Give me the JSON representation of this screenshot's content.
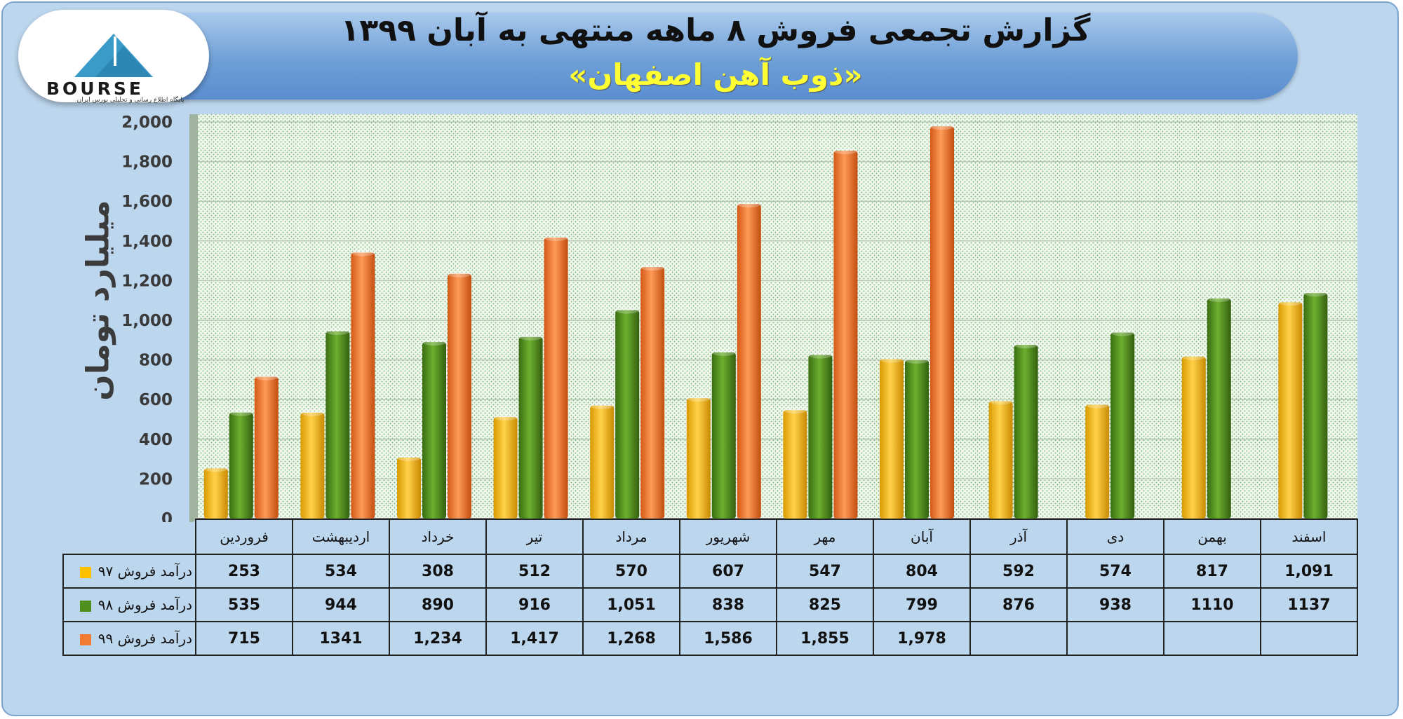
{
  "header": {
    "title": "گزارش تجمعی فروش ۸ ماهه منتهی به آبان ۱۳۹۹",
    "subtitle": "«ذوب آهن اصفهان»"
  },
  "logo": {
    "text": "BOURSE",
    "subtext": "پایگاه اطلاع رسانی و تحلیلی بورس ایران"
  },
  "colors": {
    "series_97": "#ffc000",
    "series_98": "#4e8f1d",
    "series_99": "#f07b32"
  },
  "chart_data": {
    "type": "bar",
    "ylabel": "میلیارد تومان",
    "ylim": [
      0,
      2000
    ],
    "yticks": [
      "0",
      "200",
      "400",
      "600",
      "800",
      "1,000",
      "1,200",
      "1,400",
      "1,600",
      "1,800",
      "2,000"
    ],
    "grid": true,
    "categories": [
      "فروردین",
      "اردیبهشت",
      "خرداد",
      "تیر",
      "مرداد",
      "شهریور",
      "مهر",
      "آبان",
      "آذر",
      "دی",
      "بهمن",
      "اسفند"
    ],
    "series": [
      {
        "name": "درآمد فروش ۹۷",
        "values": [
          253,
          534,
          308,
          512,
          570,
          607,
          547,
          804,
          592,
          574,
          817,
          1091
        ],
        "labels": [
          "253",
          "534",
          "308",
          "512",
          "570",
          "607",
          "547",
          "804",
          "592",
          "574",
          "817",
          "1,091"
        ]
      },
      {
        "name": "درآمد فروش ۹۸",
        "values": [
          535,
          944,
          890,
          916,
          1051,
          838,
          825,
          799,
          876,
          938,
          1110,
          1137
        ],
        "labels": [
          "535",
          "944",
          "890",
          "916",
          "1,051",
          "838",
          "825",
          "799",
          "876",
          "938",
          "1110",
          "1137"
        ]
      },
      {
        "name": "درآمد فروش ۹۹",
        "values": [
          715,
          1341,
          1234,
          1417,
          1268,
          1586,
          1855,
          1978,
          null,
          null,
          null,
          null
        ],
        "labels": [
          "715",
          "1341",
          "1,234",
          "1,417",
          "1,268",
          "1,586",
          "1,855",
          "1,978",
          "",
          "",
          "",
          ""
        ]
      }
    ]
  }
}
